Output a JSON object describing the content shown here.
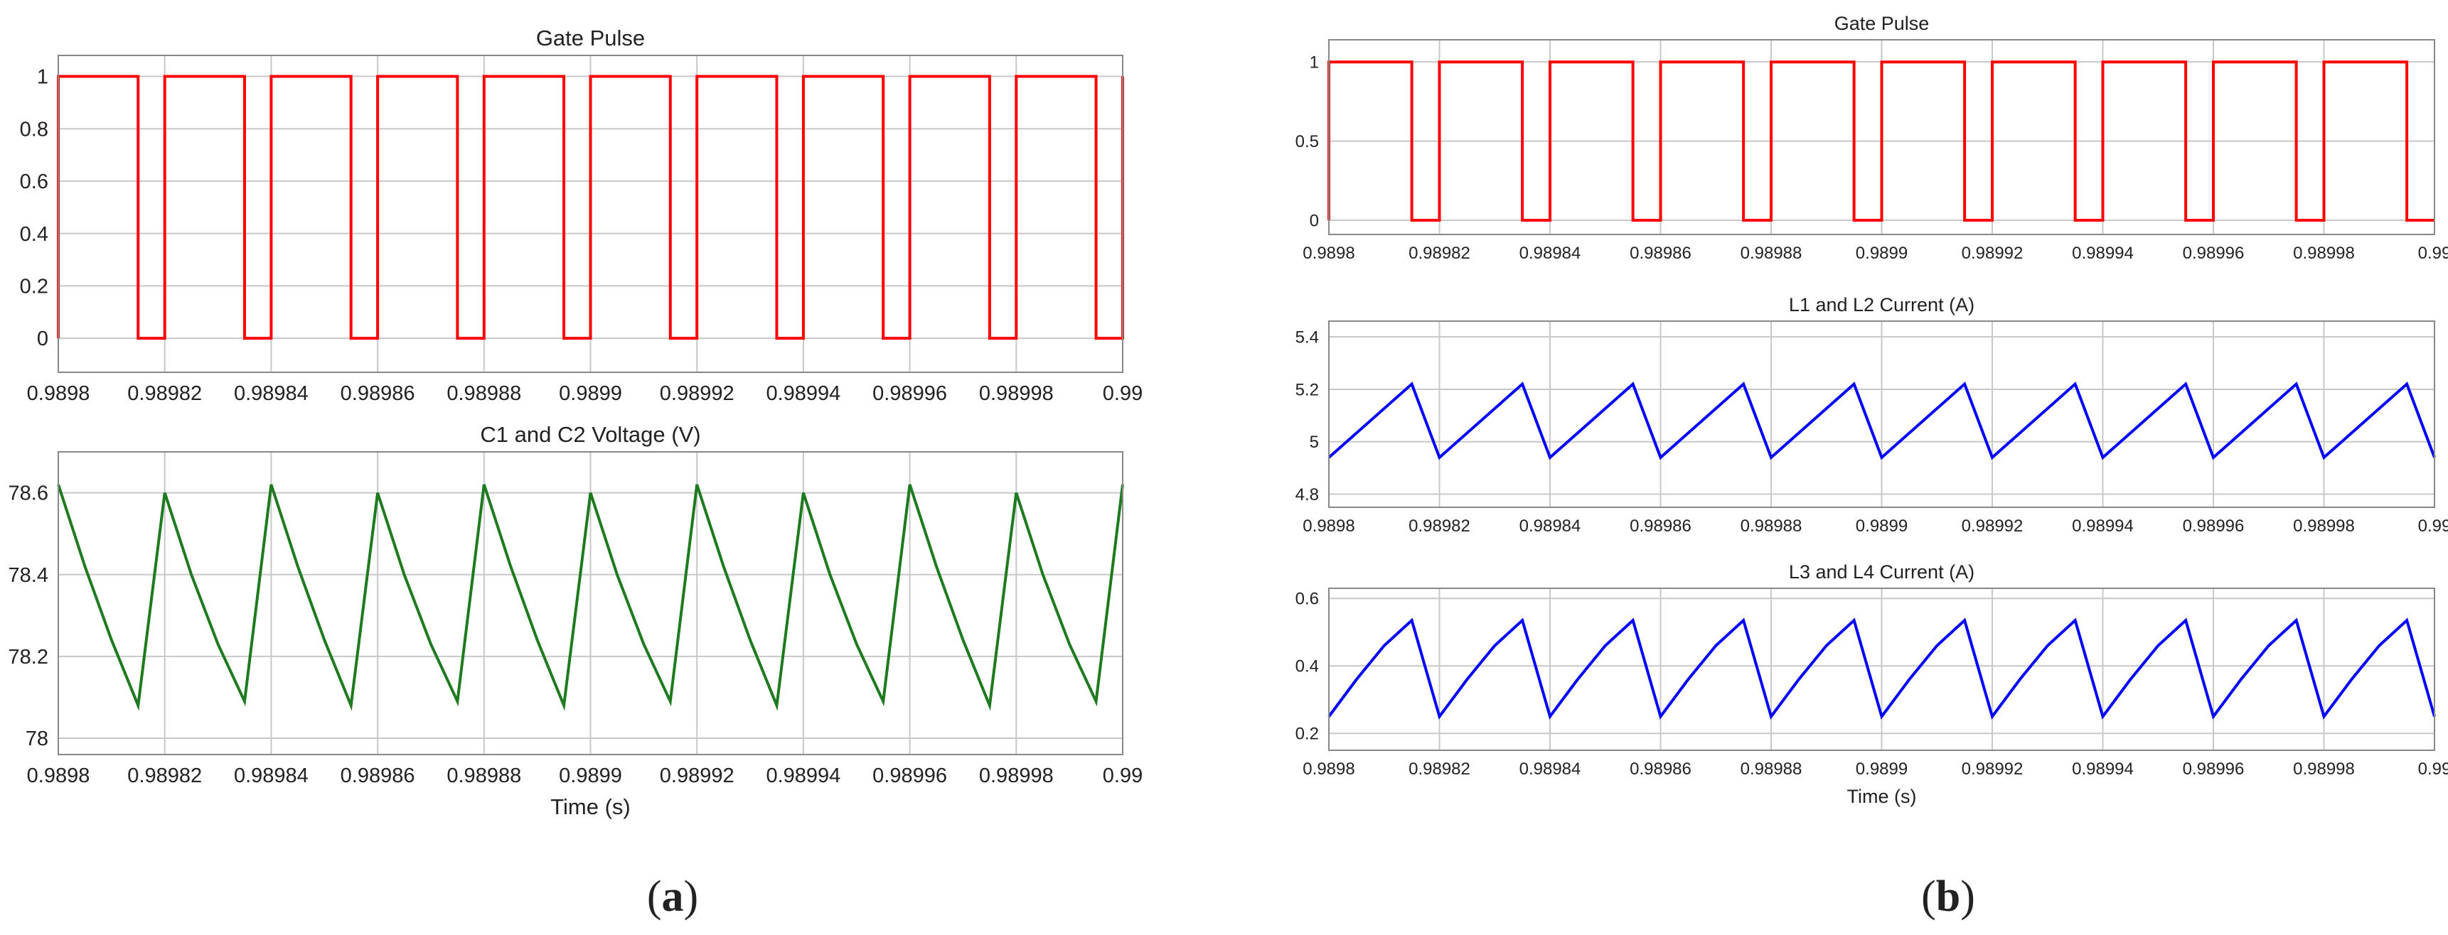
{
  "panels": [
    {
      "letter": "a"
    },
    {
      "letter": "b"
    }
  ],
  "colors": {
    "gate": "#ff0000",
    "voltage": "#1e7a1e",
    "current": "#0000ff",
    "grid": "#c8c8c8",
    "frame": "#888888",
    "text": "#222222"
  },
  "chart_data": [
    {
      "id": "a-gate",
      "type": "line",
      "panel": "a",
      "title": "Gate Pulse",
      "xlabel": "",
      "ylabel": "",
      "xlim": [
        0.9898,
        0.99
      ],
      "ylim": [
        -0.13,
        1.08
      ],
      "grid": true,
      "xticks": [
        0.9898,
        0.98982,
        0.98984,
        0.98986,
        0.98988,
        0.9899,
        0.98992,
        0.98994,
        0.98996,
        0.98998,
        0.99
      ],
      "xtick_labels": [
        "0.9898",
        "0.98982",
        "0.98984",
        "0.98986",
        "0.98988",
        "0.9899",
        "0.98992",
        "0.98994",
        "0.98996",
        "0.98998",
        "0.99"
      ],
      "yticks": [
        0,
        0.2,
        0.4,
        0.6,
        0.8,
        1
      ],
      "ytick_labels": [
        "0",
        "0.2",
        "0.4",
        "0.6",
        "0.8",
        "1"
      ],
      "series": [
        {
          "color": "#ff0000",
          "x": [
            0.9898,
            0.9898,
            0.989815,
            0.989815,
            0.98982,
            0.98982,
            0.989835,
            0.989835,
            0.98984,
            0.98984,
            0.989855,
            0.989855,
            0.98986,
            0.98986,
            0.989875,
            0.989875,
            0.98988,
            0.98988,
            0.989895,
            0.989895,
            0.9899,
            0.9899,
            0.989915,
            0.989915,
            0.98992,
            0.98992,
            0.989935,
            0.989935,
            0.98994,
            0.98994,
            0.989955,
            0.989955,
            0.98996,
            0.98996,
            0.989975,
            0.989975,
            0.98998,
            0.98998,
            0.989995,
            0.989995,
            0.99,
            0.99
          ],
          "y": [
            0,
            1,
            1,
            0,
            0,
            1,
            1,
            0,
            0,
            1,
            1,
            0,
            0,
            1,
            1,
            0,
            0,
            1,
            1,
            0,
            0,
            1,
            1,
            0,
            0,
            1,
            1,
            0,
            0,
            1,
            1,
            0,
            0,
            1,
            1,
            0,
            0,
            1,
            1,
            0,
            0,
            1
          ]
        }
      ]
    },
    {
      "id": "a-voltage",
      "type": "line",
      "panel": "a",
      "title": "C1 and C2 Voltage (V)",
      "xlabel": "Time (s)",
      "ylabel": "",
      "xlim": [
        0.9898,
        0.99
      ],
      "ylim": [
        77.96,
        78.7
      ],
      "grid": true,
      "xticks": [
        0.9898,
        0.98982,
        0.98984,
        0.98986,
        0.98988,
        0.9899,
        0.98992,
        0.98994,
        0.98996,
        0.98998,
        0.99
      ],
      "xtick_labels": [
        "0.9898",
        "0.98982",
        "0.98984",
        "0.98986",
        "0.98988",
        "0.9899",
        "0.98992",
        "0.98994",
        "0.98996",
        "0.98998",
        "0.99"
      ],
      "yticks": [
        78,
        78.2,
        78.4,
        78.6
      ],
      "ytick_labels": [
        "78",
        "78.2",
        "78.4",
        "78.6"
      ],
      "series": [
        {
          "color": "#1e7a1e",
          "x": [
            0.9898,
            0.989805,
            0.98981,
            0.989815,
            0.98982,
            0.989825,
            0.98983,
            0.989835,
            0.98984,
            0.989845,
            0.98985,
            0.989855,
            0.98986,
            0.989865,
            0.98987,
            0.989875,
            0.98988,
            0.989885,
            0.98989,
            0.989895,
            0.9899,
            0.989905,
            0.98991,
            0.989915,
            0.98992,
            0.989925,
            0.98993,
            0.989935,
            0.98994,
            0.989945,
            0.98995,
            0.989955,
            0.98996,
            0.989965,
            0.98997,
            0.989975,
            0.98998,
            0.989985,
            0.98999,
            0.989995,
            0.99
          ],
          "y": [
            78.62,
            78.42,
            78.24,
            78.08,
            78.6,
            78.4,
            78.23,
            78.09,
            78.62,
            78.42,
            78.24,
            78.08,
            78.6,
            78.4,
            78.23,
            78.09,
            78.62,
            78.42,
            78.24,
            78.08,
            78.6,
            78.4,
            78.23,
            78.09,
            78.62,
            78.42,
            78.24,
            78.08,
            78.6,
            78.4,
            78.23,
            78.09,
            78.62,
            78.42,
            78.24,
            78.08,
            78.6,
            78.4,
            78.23,
            78.09,
            78.62
          ]
        }
      ]
    },
    {
      "id": "b-gate",
      "type": "line",
      "panel": "b",
      "title": "Gate Pulse",
      "xlabel": "",
      "ylabel": "",
      "xlim": [
        0.9898,
        0.99
      ],
      "ylim": [
        -0.09,
        1.14
      ],
      "grid": true,
      "xticks": [
        0.9898,
        0.98982,
        0.98984,
        0.98986,
        0.98988,
        0.9899,
        0.98992,
        0.98994,
        0.98996,
        0.98998,
        0.99
      ],
      "xtick_labels": [
        "0.9898",
        "0.98982",
        "0.98984",
        "0.98986",
        "0.98988",
        "0.9899",
        "0.98992",
        "0.98994",
        "0.98996",
        "0.98998",
        "0.99"
      ],
      "yticks": [
        0,
        0.5,
        1
      ],
      "ytick_labels": [
        "0",
        "0.5",
        "1"
      ],
      "series": [
        {
          "color": "#ff0000",
          "x": [
            0.9898,
            0.9898,
            0.989815,
            0.989815,
            0.98982,
            0.98982,
            0.989835,
            0.989835,
            0.98984,
            0.98984,
            0.989855,
            0.989855,
            0.98986,
            0.98986,
            0.989875,
            0.989875,
            0.98988,
            0.98988,
            0.989895,
            0.989895,
            0.9899,
            0.9899,
            0.989915,
            0.989915,
            0.98992,
            0.98992,
            0.989935,
            0.989935,
            0.98994,
            0.98994,
            0.989955,
            0.989955,
            0.98996,
            0.98996,
            0.989975,
            0.989975,
            0.98998,
            0.98998,
            0.989995,
            0.989995,
            0.99
          ],
          "y": [
            0,
            1,
            1,
            0,
            0,
            1,
            1,
            0,
            0,
            1,
            1,
            0,
            0,
            1,
            1,
            0,
            0,
            1,
            1,
            0,
            0,
            1,
            1,
            0,
            0,
            1,
            1,
            0,
            0,
            1,
            1,
            0,
            0,
            1,
            1,
            0,
            0,
            1,
            1,
            0,
            0
          ]
        }
      ]
    },
    {
      "id": "b-l12",
      "type": "line",
      "panel": "b",
      "title": "L1 and L2 Current (A)",
      "xlabel": "",
      "ylabel": "",
      "xlim": [
        0.9898,
        0.99
      ],
      "ylim": [
        4.75,
        5.46
      ],
      "grid": true,
      "xticks": [
        0.9898,
        0.98982,
        0.98984,
        0.98986,
        0.98988,
        0.9899,
        0.98992,
        0.98994,
        0.98996,
        0.98998,
        0.99
      ],
      "xtick_labels": [
        "0.9898",
        "0.98982",
        "0.98984",
        "0.98986",
        "0.98988",
        "0.9899",
        "0.98992",
        "0.98994",
        "0.98996",
        "0.98998",
        "0.99"
      ],
      "yticks": [
        4.8,
        5,
        5.2,
        5.4
      ],
      "ytick_labels": [
        "4.8",
        "5",
        "5.2",
        "5.4"
      ],
      "series": [
        {
          "color": "#0000ff",
          "x": [
            0.9898,
            0.989815,
            0.98982,
            0.989835,
            0.98984,
            0.989855,
            0.98986,
            0.989875,
            0.98988,
            0.989895,
            0.9899,
            0.989915,
            0.98992,
            0.989935,
            0.98994,
            0.989955,
            0.98996,
            0.989975,
            0.98998,
            0.989995,
            0.99
          ],
          "y": [
            4.94,
            5.22,
            4.94,
            5.22,
            4.94,
            5.22,
            4.94,
            5.22,
            4.94,
            5.22,
            4.94,
            5.22,
            4.94,
            5.22,
            4.94,
            5.22,
            4.94,
            5.22,
            4.94,
            5.22,
            4.94
          ]
        }
      ]
    },
    {
      "id": "b-l34",
      "type": "line",
      "panel": "b",
      "title": "L3 and L4 Current (A)",
      "xlabel": "Time (s)",
      "ylabel": "",
      "xlim": [
        0.9898,
        0.99
      ],
      "ylim": [
        0.15,
        0.63
      ],
      "grid": true,
      "xticks": [
        0.9898,
        0.98982,
        0.98984,
        0.98986,
        0.98988,
        0.9899,
        0.98992,
        0.98994,
        0.98996,
        0.98998,
        0.99
      ],
      "xtick_labels": [
        "0.9898",
        "0.98982",
        "0.98984",
        "0.98986",
        "0.98988",
        "0.9899",
        "0.98992",
        "0.98994",
        "0.98996",
        "0.98998",
        "0.99"
      ],
      "yticks": [
        0.2,
        0.4,
        0.6
      ],
      "ytick_labels": [
        "0.2",
        "0.4",
        "0.6"
      ],
      "series": [
        {
          "color": "#0000ff",
          "x": [
            0.9898,
            0.989805,
            0.98981,
            0.989815,
            0.98982,
            0.989825,
            0.98983,
            0.989835,
            0.98984,
            0.989845,
            0.98985,
            0.989855,
            0.98986,
            0.989865,
            0.98987,
            0.989875,
            0.98988,
            0.989885,
            0.98989,
            0.989895,
            0.9899,
            0.989905,
            0.98991,
            0.989915,
            0.98992,
            0.989925,
            0.98993,
            0.989935,
            0.98994,
            0.989945,
            0.98995,
            0.989955,
            0.98996,
            0.989965,
            0.98997,
            0.989975,
            0.98998,
            0.989985,
            0.98999,
            0.989995,
            0.99
          ],
          "y": [
            0.25,
            0.36,
            0.46,
            0.535,
            0.25,
            0.36,
            0.46,
            0.535,
            0.25,
            0.36,
            0.46,
            0.535,
            0.25,
            0.36,
            0.46,
            0.535,
            0.25,
            0.36,
            0.46,
            0.535,
            0.25,
            0.36,
            0.46,
            0.535,
            0.25,
            0.36,
            0.46,
            0.535,
            0.25,
            0.36,
            0.46,
            0.535,
            0.25,
            0.36,
            0.46,
            0.535,
            0.25,
            0.36,
            0.46,
            0.535,
            0.25
          ]
        }
      ]
    }
  ]
}
